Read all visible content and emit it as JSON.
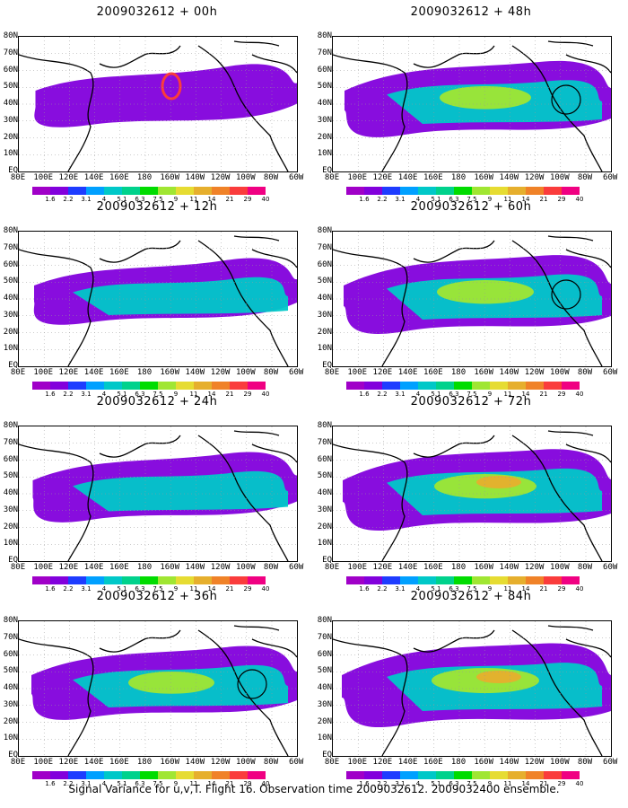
{
  "panels": [
    {
      "title": "2009032612 + 00h",
      "level": 0.15,
      "circle": false
    },
    {
      "title": "2009032612 + 48h",
      "level": 0.7,
      "circle": true
    },
    {
      "title": "2009032612 + 12h",
      "level": 0.3,
      "circle": false
    },
    {
      "title": "2009032612 + 60h",
      "level": 0.8,
      "circle": true
    },
    {
      "title": "2009032612 + 24h",
      "level": 0.45,
      "circle": false
    },
    {
      "title": "2009032612 + 72h",
      "level": 0.9,
      "circle": false
    },
    {
      "title": "2009032612 + 36h",
      "level": 0.6,
      "circle": true
    },
    {
      "title": "2009032612 + 84h",
      "level": 1.0,
      "circle": false
    }
  ],
  "lat_labels": [
    "80N",
    "70N",
    "60N",
    "50N",
    "40N",
    "30N",
    "20N",
    "10N",
    "EQ"
  ],
  "lon_labels": [
    "80E",
    "100E",
    "120E",
    "140E",
    "160E",
    "180",
    "160W",
    "140W",
    "120W",
    "100W",
    "80W",
    "60W"
  ],
  "colorbar": {
    "colors": [
      "#a000c8",
      "#8200dc",
      "#1e3cff",
      "#00a0ff",
      "#00c8c8",
      "#00d28c",
      "#00dc00",
      "#a0e632",
      "#e6dc32",
      "#e6af2d",
      "#f08228",
      "#fa3c3c",
      "#f00082"
    ],
    "labels": [
      "1.6",
      "2.2",
      "3.1",
      "4",
      "5.1",
      "6.3",
      "7.5",
      "9",
      "11",
      "14",
      "21",
      "29",
      "40"
    ]
  },
  "caption": "Signal Variance for u,v,T. Flight 16. Observation time 2009032612. 2009032400 ensemble."
}
